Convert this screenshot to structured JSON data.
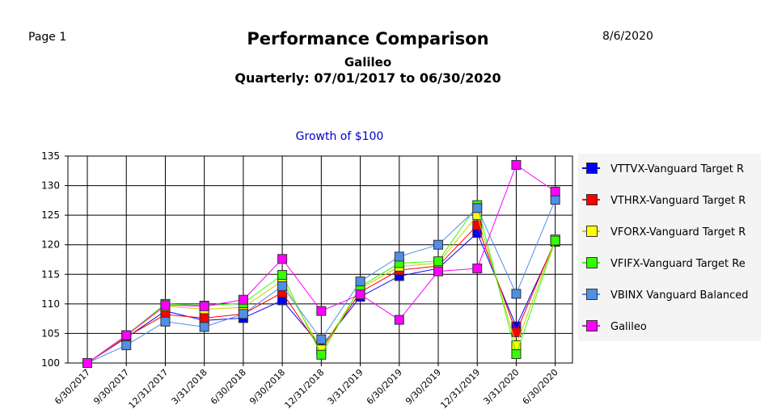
{
  "header": {
    "page_label": "Page 1",
    "date": "8/6/2020",
    "title": "Performance Comparison",
    "subtitle": "Galileo",
    "period": "Quarterly: 07/01/2017 to 06/30/2020"
  },
  "chart_data": {
    "type": "line",
    "title": "Growth of $100",
    "xlabel": "",
    "ylabel": "",
    "ylim": [
      100,
      135
    ],
    "yticks": [
      100,
      105,
      110,
      115,
      120,
      125,
      130,
      135
    ],
    "grid": true,
    "legend_position": "right",
    "categories": [
      "6/30/2017",
      "9/30/2017",
      "12/31/2017",
      "3/31/2018",
      "6/30/2018",
      "9/30/2018",
      "12/31/2018",
      "3/31/2019",
      "6/30/2019",
      "9/30/2019",
      "12/31/2019",
      "3/31/2020",
      "6/30/2020"
    ],
    "series": [
      {
        "name": "VTTVX-Vanguard Target R",
        "color": "#0000ff",
        "values": [
          100,
          104.3,
          108.8,
          107.2,
          107.6,
          110.6,
          102.8,
          111.2,
          114.7,
          116.0,
          122.0,
          106.2,
          120.5
        ]
      },
      {
        "name": "VTHRX-Vanguard Target R",
        "color": "#ff0000",
        "values": [
          100,
          104.4,
          108.2,
          107.6,
          108.3,
          111.9,
          102.2,
          112.0,
          115.7,
          116.4,
          123.3,
          105.2,
          120.8
        ]
      },
      {
        "name": "VFORX-Vanguard Target R",
        "color": "#ffff00",
        "values": [
          100,
          104.6,
          109.6,
          109.1,
          109.4,
          113.9,
          102.3,
          112.6,
          116.3,
          116.9,
          125.0,
          103.0,
          120.9
        ]
      },
      {
        "name": "VFIFX-Vanguard Target Re",
        "color": "#33ff00",
        "values": [
          100,
          104.7,
          110.0,
          109.7,
          110.1,
          114.9,
          101.4,
          112.9,
          116.9,
          117.2,
          126.7,
          101.5,
          120.7
        ]
      },
      {
        "name": "VBINX Vanguard Balanced",
        "color": "#4f8fe6",
        "values": [
          100,
          103.0,
          107.0,
          106.1,
          108.3,
          113.0,
          104.0,
          113.8,
          118.0,
          120.0,
          126.2,
          111.7,
          127.6
        ]
      },
      {
        "name": "Galileo",
        "color": "#ff00ff",
        "values": [
          100,
          104.7,
          109.8,
          109.6,
          110.7,
          117.6,
          108.8,
          111.6,
          107.3,
          115.5,
          116.0,
          133.5,
          129.0
        ]
      }
    ]
  }
}
